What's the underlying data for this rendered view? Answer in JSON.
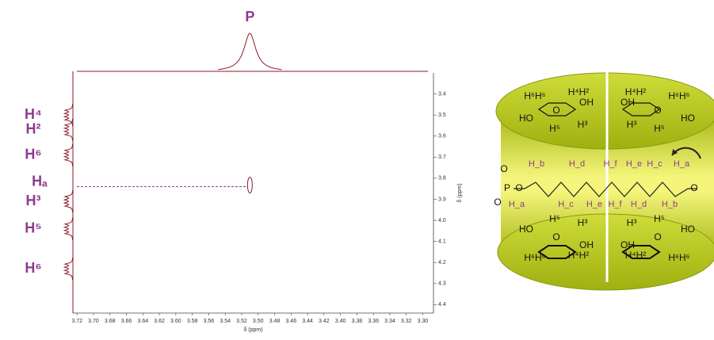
{
  "chart_data": {
    "type": "nmr2d",
    "xlabel": "δ (ppm)",
    "ylabel": "δ (ppm)",
    "xlim": [
      3.725,
      3.287
    ],
    "ylim": [
      3.3,
      4.44
    ],
    "xticks": [
      3.72,
      {
        "value": 3.7,
        "label": "3.70"
      },
      3.68,
      3.66,
      3.64,
      3.62,
      {
        "value": 3.6,
        "label": "3.60"
      },
      3.58,
      3.56,
      3.54,
      3.52,
      {
        "value": 3.5,
        "label": "3.50"
      },
      3.48,
      3.46,
      3.44,
      3.42,
      {
        "value": 3.4,
        "label": "3.40"
      },
      3.38,
      3.36,
      3.34,
      3.32,
      {
        "value": 3.3,
        "label": "3.30"
      }
    ],
    "yticks": [
      3.4,
      3.5,
      3.6,
      3.7,
      3.8,
      3.9,
      {
        "value": 4,
        "label": "4.0"
      },
      4.1,
      4.2,
      4.3,
      4.4
    ],
    "f2_peaks": [
      {
        "label": "P",
        "ppm": 3.51
      }
    ],
    "f1_peaks": [
      {
        "label": "H⁴",
        "ppm": 3.5
      },
      {
        "label": "H²",
        "ppm": 3.57
      },
      {
        "label": "H⁶",
        "ppm": 3.69
      },
      {
        "label": "H³",
        "ppm": 3.91
      },
      {
        "label": "H⁵",
        "ppm": 4.04
      },
      {
        "label": "H⁶",
        "ppm": 4.23
      }
    ],
    "cross_peak": {
      "label": "Hₐ",
      "x": 3.51,
      "y": 3.84
    }
  },
  "diagram": {
    "sugar_labels": [
      "H⁶H⁶",
      "H⁴H²",
      "HO",
      "OH",
      "H⁵",
      "H³",
      "O"
    ],
    "chain_top": [
      "H_b",
      "H_d",
      "H_f",
      "H_e",
      "H_c",
      "H_a"
    ],
    "chain_bottom": [
      "H_a",
      "H_c",
      "H_e",
      "H_f",
      "H_d",
      "H_b"
    ],
    "atoms": [
      "O",
      "P",
      "O",
      "O",
      "O"
    ]
  }
}
